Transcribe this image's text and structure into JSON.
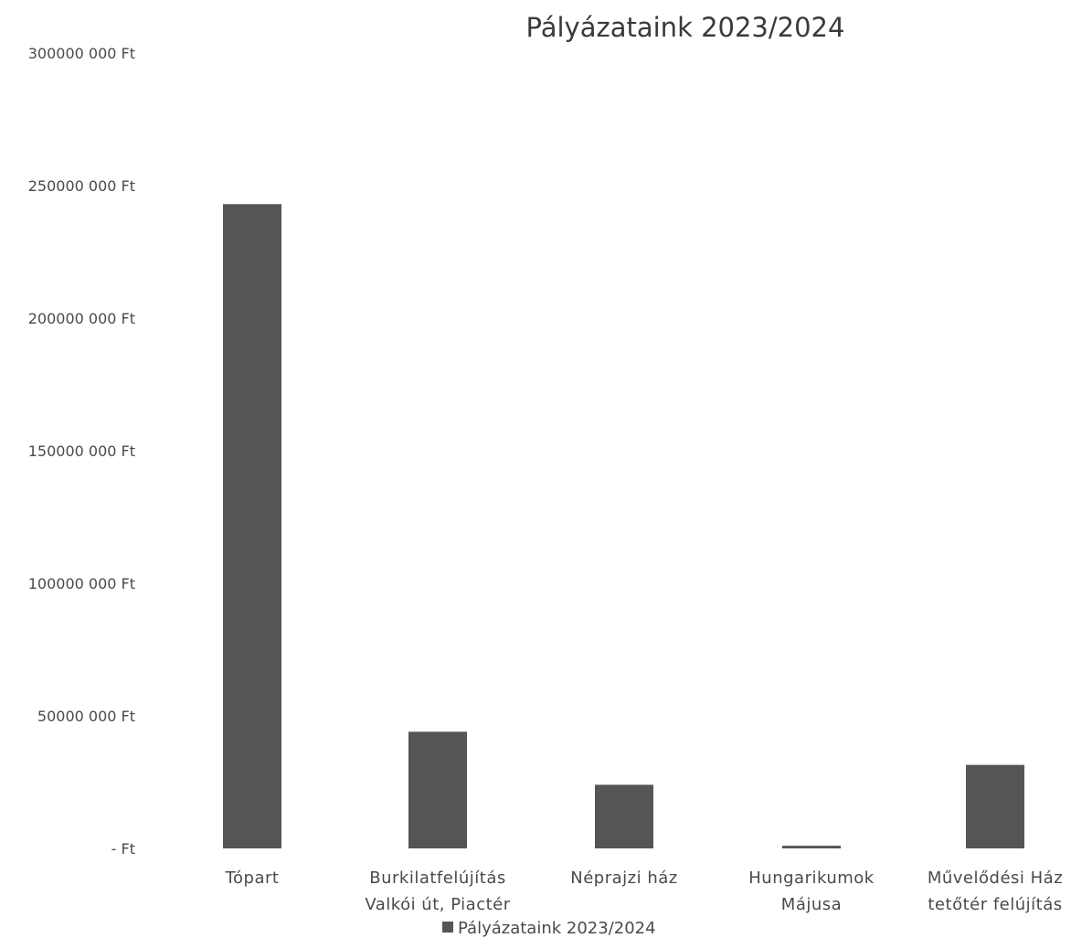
{
  "chart_data": {
    "type": "bar",
    "title": "Pályázataink 2023/2024",
    "categories": [
      [
        "Tópart"
      ],
      [
        "Burkilatfelújítás",
        "Valkói út, Piactér"
      ],
      [
        "Néprajzi ház"
      ],
      [
        "Hungarikumok",
        "Májusa"
      ],
      [
        "Művelődési Ház",
        "tetőtér felújítás"
      ]
    ],
    "series": [
      {
        "name": "Pályázataink 2023/2024",
        "color": "#555555",
        "values": [
          243000000,
          44000000,
          24000000,
          1000000,
          31500000
        ]
      }
    ],
    "ylim": [
      0,
      300000000
    ],
    "yticks": [
      0,
      50000000,
      100000000,
      150000000,
      200000000,
      250000000,
      300000000
    ],
    "ytick_labels": [
      "-   Ft",
      "50000 000 Ft",
      "100000 000 Ft",
      "150000 000 Ft",
      "200000 000 Ft",
      "250000 000 Ft",
      "300000 000 Ft"
    ],
    "grid": false,
    "legend": "bottom"
  }
}
